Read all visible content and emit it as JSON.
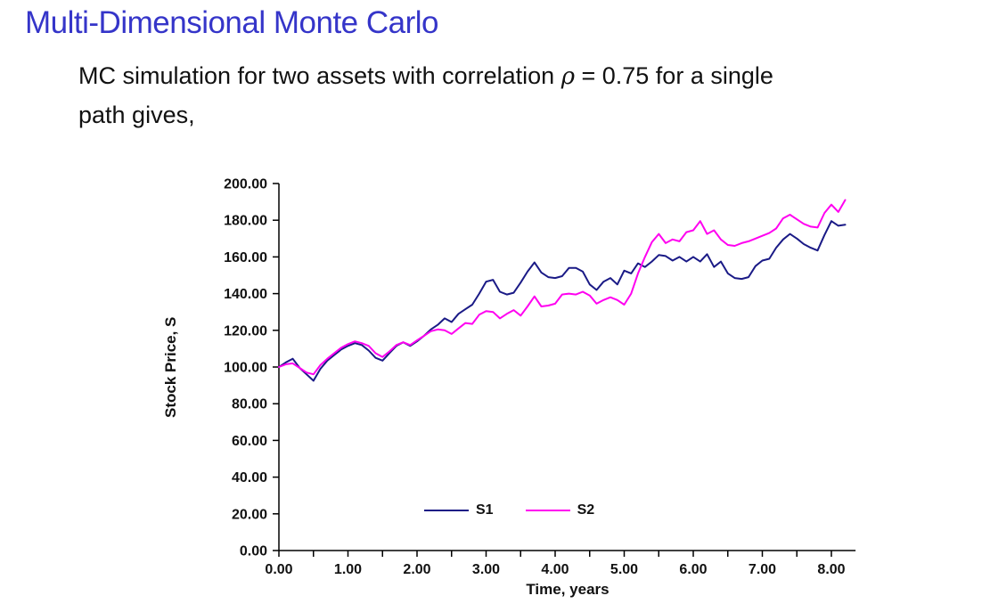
{
  "slide": {
    "title": "Multi-Dimensional Monte Carlo",
    "body": {
      "line1_pre": "MC simulation for two assets with correlation ",
      "rho": "ρ",
      "line1_rest": " = 0.75 for a single",
      "line2": "path gives,"
    }
  },
  "chart_data": {
    "type": "line",
    "title": "",
    "xlabel": "Time, years",
    "ylabel": "Stock Price, S",
    "xlim": [
      0,
      8.35
    ],
    "ylim": [
      0,
      200
    ],
    "grid": false,
    "legend_position": "bottom-center-inside",
    "x_tick_interval": 1.0,
    "x_minor_tick_interval": 0.5,
    "y_tick_interval": 20,
    "x_tick_labels": [
      "0.00",
      "1.00",
      "2.00",
      "3.00",
      "4.00",
      "5.00",
      "6.00",
      "7.00",
      "8.00"
    ],
    "y_tick_labels": [
      "0.00",
      "20.00",
      "40.00",
      "60.00",
      "80.00",
      "100.00",
      "120.00",
      "140.00",
      "160.00",
      "180.00",
      "200.00"
    ],
    "x_start": 0,
    "x_step": 0.1,
    "series": [
      {
        "name": "S1",
        "color": "#1A1A86",
        "values": [
          100,
          102.5,
          104.5,
          99.5,
          96,
          92.5,
          99,
          103.5,
          106.5,
          109.5,
          111.5,
          113,
          112,
          109,
          105,
          103.5,
          107.5,
          111.5,
          113.5,
          111.5,
          114,
          117,
          120.5,
          123,
          126.5,
          124.5,
          129,
          131.5,
          134,
          140,
          146.5,
          147.5,
          141,
          139.5,
          140.5,
          146,
          152,
          157,
          151.5,
          149,
          148.5,
          149.5,
          154,
          154,
          152,
          145,
          142,
          146.5,
          148.5,
          145,
          152.5,
          151,
          156.5,
          154.5,
          157.5,
          161,
          160.5,
          158,
          160,
          157.5,
          160,
          157.5,
          161.5,
          154.5,
          157.5,
          151,
          148.5,
          148,
          149,
          155,
          158,
          159,
          165,
          169.5,
          172.5,
          170,
          167,
          165,
          163.5,
          172,
          179.5,
          177,
          177.5
        ]
      },
      {
        "name": "S2",
        "color": "#FF00F0",
        "values": [
          100,
          101.5,
          102,
          99.5,
          97,
          96,
          101,
          104.5,
          107.5,
          110.5,
          112.5,
          114,
          113,
          111.5,
          107.5,
          105.5,
          108.5,
          112,
          113.5,
          112,
          114.5,
          117,
          119.5,
          120.5,
          120,
          118,
          121,
          124,
          123.5,
          128.5,
          130.5,
          130,
          126.5,
          129,
          131,
          128,
          133,
          138.5,
          133,
          133.5,
          134.5,
          139.5,
          140,
          139.5,
          141,
          139,
          134.5,
          136.5,
          138,
          136.5,
          134,
          140,
          151,
          160,
          168,
          172.5,
          167.5,
          169.5,
          168.5,
          173.5,
          174.5,
          179.5,
          172.5,
          174.5,
          169.5,
          166.5,
          166,
          167.5,
          168.5,
          170,
          171.5,
          173,
          175.5,
          181,
          183,
          180.5,
          178,
          176.5,
          176,
          184,
          188.5,
          184.5,
          191
        ]
      }
    ]
  }
}
